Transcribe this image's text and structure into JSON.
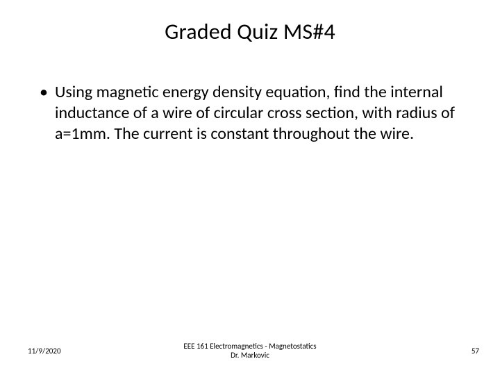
{
  "title": "Graded Quiz MS#4",
  "bullet": {
    "marker": "•",
    "text": "Using magnetic energy density equation, find the internal inductance of a wire of circular cross section, with radius of a=1mm. The current is constant throughout the wire."
  },
  "footer": {
    "date": "11/9/2020",
    "center_line1": "EEE 161 Electromagnetics - Magnetostatics",
    "center_line2": "Dr. Markovic",
    "page": "57"
  },
  "colors": {
    "background": "#ffffff",
    "text": "#000000"
  },
  "fonts": {
    "title_size_pt": 32,
    "body_size_pt": 24,
    "footer_size_pt": 11
  }
}
